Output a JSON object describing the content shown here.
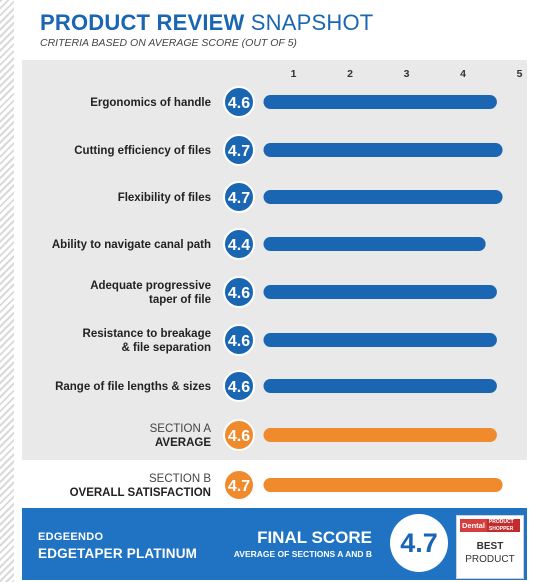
{
  "header": {
    "title_bold": "PRODUCT REVIEW",
    "title_light": "SNAPSHOT",
    "subtitle": "CRITERIA BASED ON AVERAGE SCORE (OUT OF 5)"
  },
  "chart_data": {
    "type": "bar",
    "orientation": "horizontal",
    "xlim": [
      0,
      5
    ],
    "ticks": [
      "1",
      "2",
      "3",
      "4",
      "5"
    ],
    "categories": [
      [
        "Ergonomics of handle"
      ],
      [
        "Cutting efficiency of files"
      ],
      [
        "Flexibility of files"
      ],
      [
        "Ability to navigate canal path"
      ],
      [
        "Adequate progressive",
        "taper of file"
      ],
      [
        "Resistance to breakage",
        "& file separation"
      ],
      [
        "Range of file lengths & sizes"
      ],
      [
        "SECTION A",
        "AVERAGE"
      ],
      [
        "SECTION B",
        "OVERALL SATISFACTION"
      ]
    ],
    "values": [
      4.6,
      4.7,
      4.7,
      4.4,
      4.6,
      4.6,
      4.6,
      4.6,
      4.7
    ],
    "value_labels": [
      "4.6",
      "4.7",
      "4.7",
      "4.4",
      "4.6",
      "4.6",
      "4.6",
      "4.6",
      "4.7"
    ],
    "bar_colors": [
      "#1b66b3",
      "#1b66b3",
      "#1b66b3",
      "#1b66b3",
      "#1b66b3",
      "#1b66b3",
      "#1b66b3",
      "#ef8a2d",
      "#ef8a2d"
    ]
  },
  "footer": {
    "brand": "EDGEENDO",
    "product": "EDGETAPER PLATINUM",
    "final_score_label": "FINAL SCORE",
    "final_score_sub": "AVERAGE OF SECTIONS A AND B",
    "final_score_value": "4.7",
    "badge_dental": "Dental",
    "badge_product": "PRODUCT",
    "badge_shopper": "SHOPPER",
    "badge_best": "BEST",
    "badge_product_word": "PRODUCT"
  },
  "colors": {
    "blue": "#1b66b3",
    "orange": "#ef8a2d",
    "panel": "#e9e9e9",
    "footer": "#1f73c2"
  }
}
